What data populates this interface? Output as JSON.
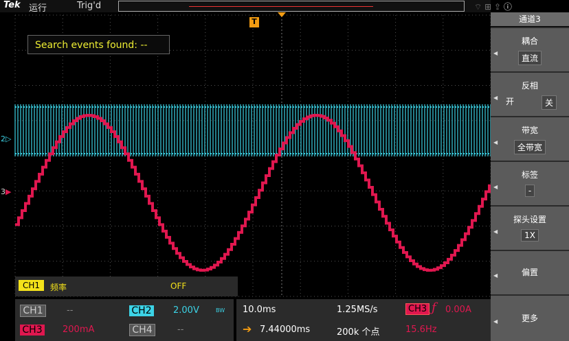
{
  "top_bar": {
    "brand": "Tek",
    "run_state": "运行",
    "trigger_status": "Trig'd"
  },
  "plot": {
    "trigger_marker": "T",
    "search_label": "Search events found:  --",
    "ch2_marker": "2",
    "ch3_marker": "3"
  },
  "measurement": {
    "channel": "CH1",
    "type": "频率",
    "state": "OFF"
  },
  "channels": [
    {
      "label": "CH1",
      "scale": "--"
    },
    {
      "label": "CH2",
      "scale": "2.00V",
      "bw": "BW"
    },
    {
      "label": "CH3",
      "scale": "200mA"
    },
    {
      "label": "CH4",
      "scale": "--"
    }
  ],
  "timebase": {
    "scale": "10.0ms",
    "sample_rate": "1.25MS/s",
    "position": "7.44000ms",
    "record_length": "200k 个点"
  },
  "trigger": {
    "source": "CH3",
    "level": "0.00A",
    "frequency": "15.6Hz"
  },
  "menu": {
    "title": "通道3",
    "items": [
      {
        "label": "耦合",
        "value": "直流"
      },
      {
        "label": "反相",
        "options": [
          "开",
          "关"
        ]
      },
      {
        "label": "带宽",
        "value": "全带宽"
      },
      {
        "label": "标签",
        "value": "-"
      },
      {
        "label": "探头设置",
        "value": "1X"
      },
      {
        "label": "偏置"
      },
      {
        "label": "更多"
      }
    ]
  }
}
